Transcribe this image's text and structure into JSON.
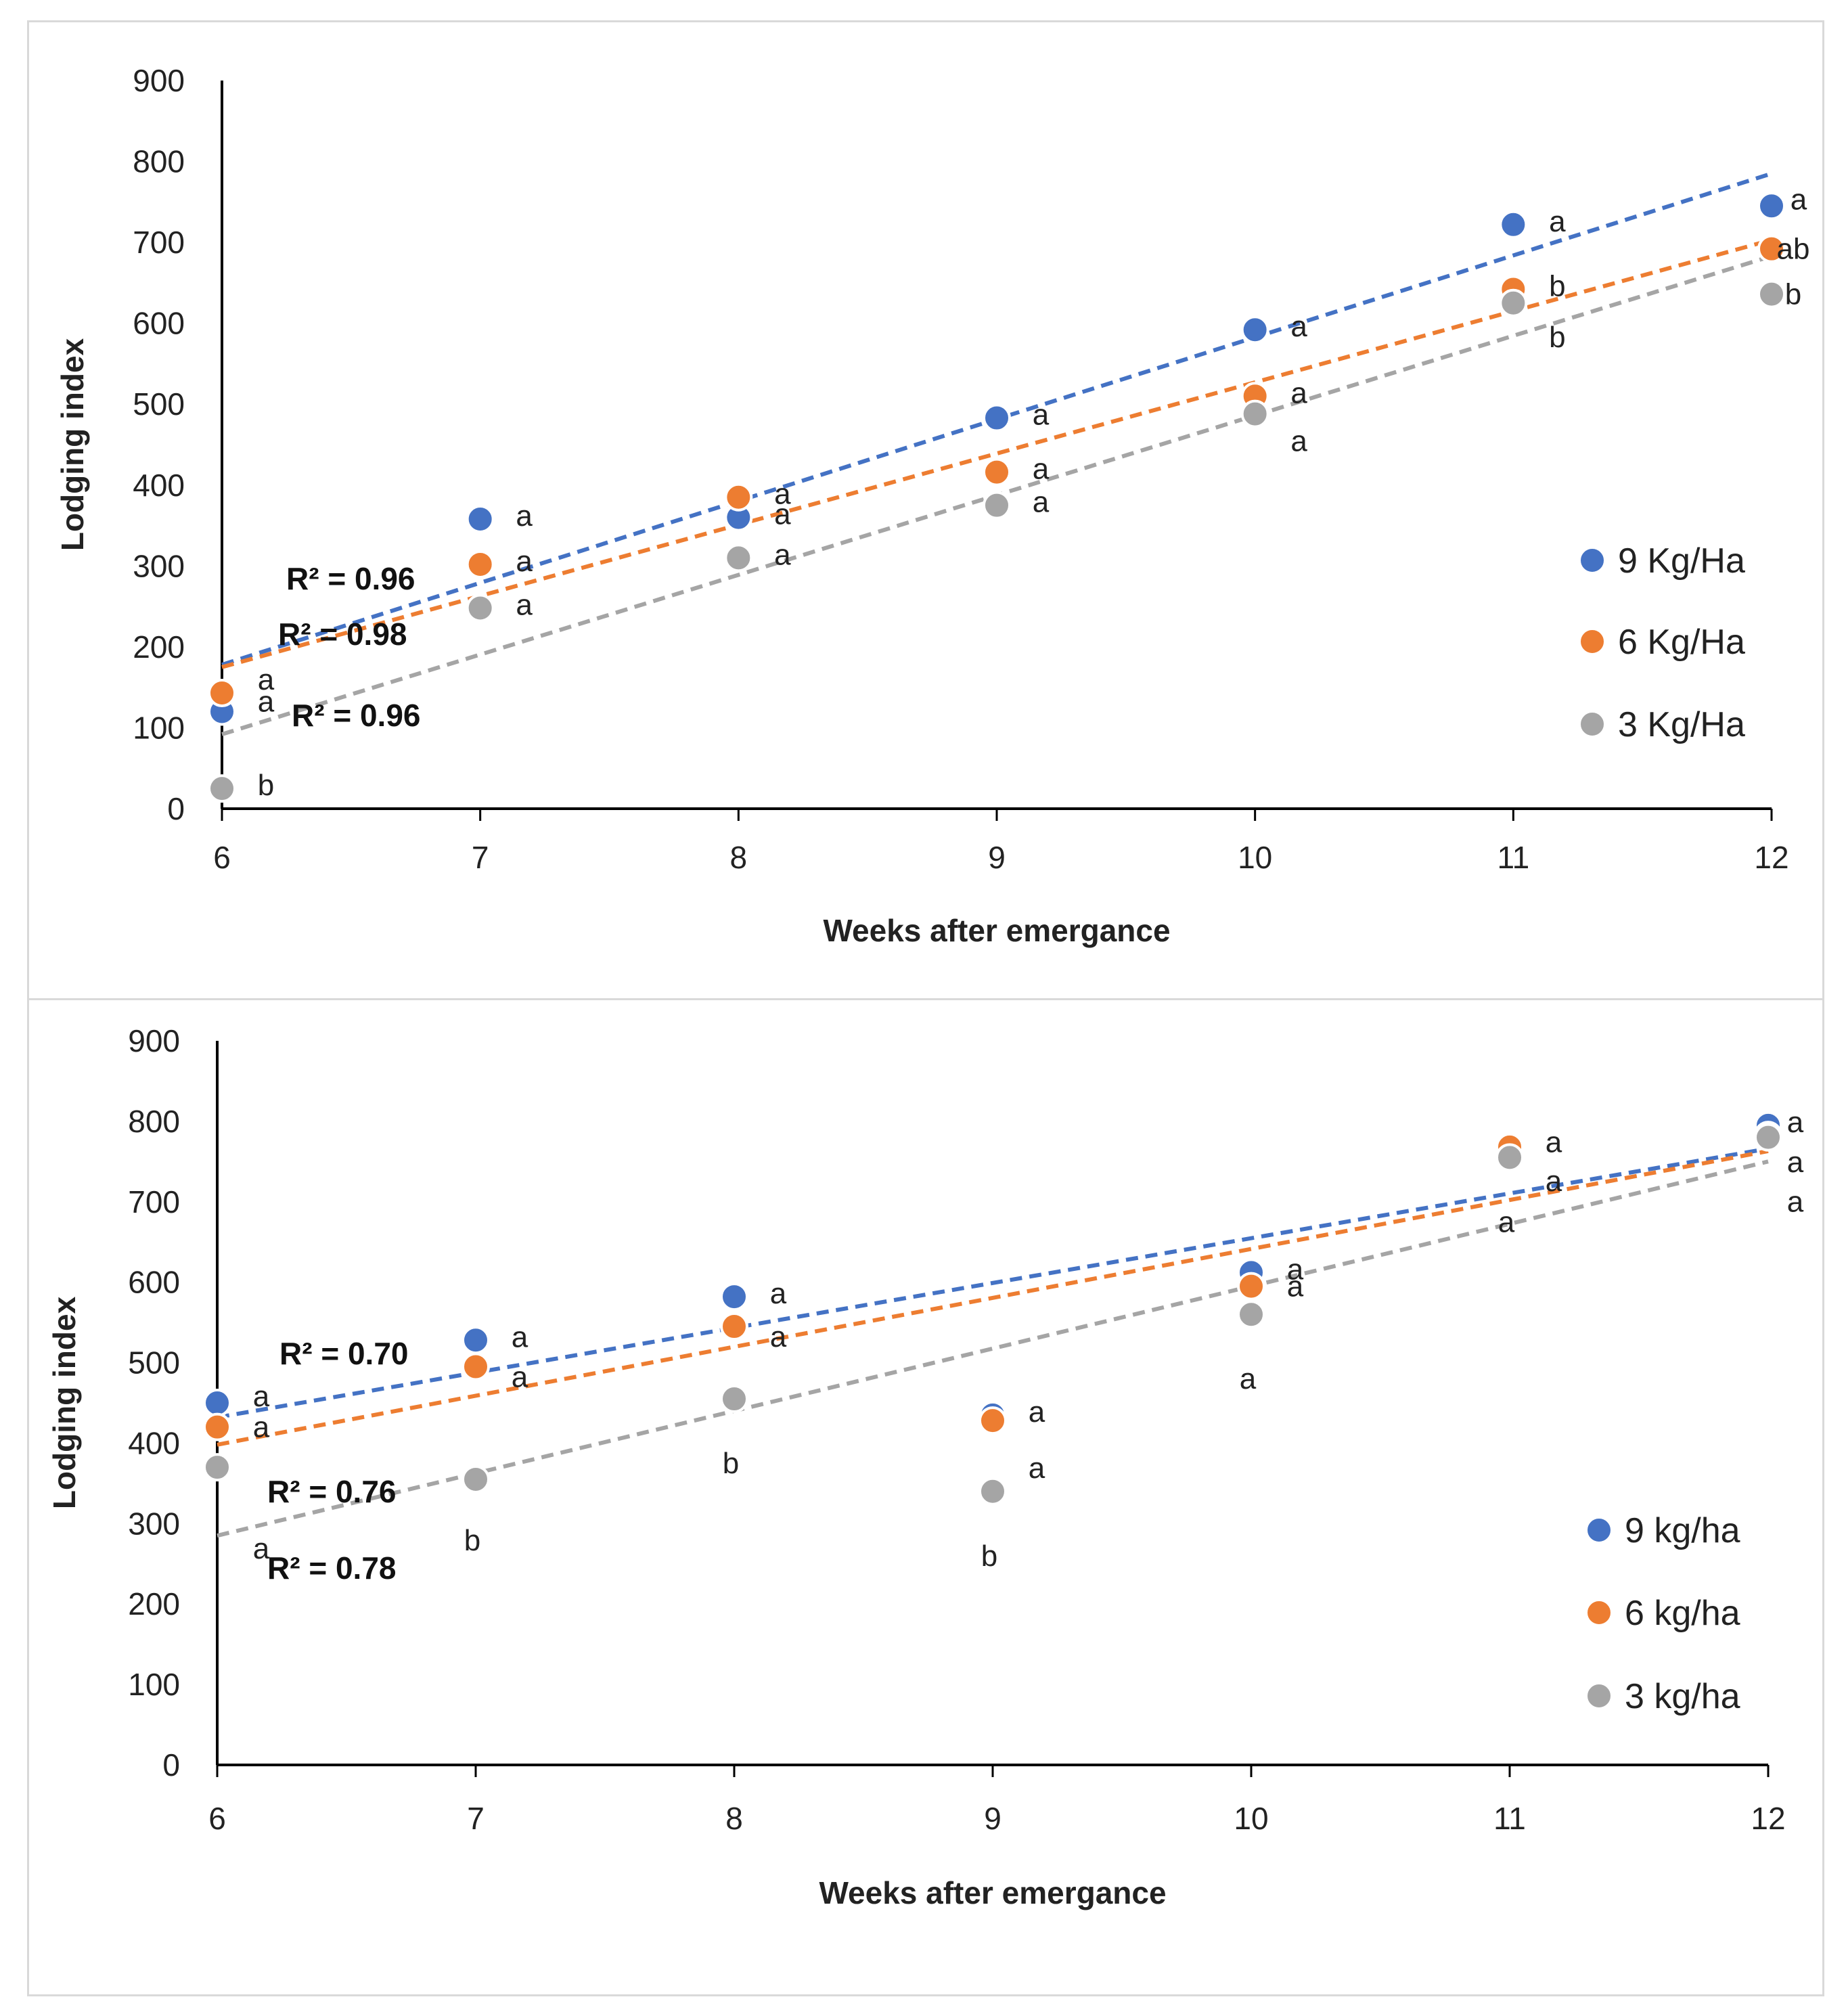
{
  "colors": {
    "9": "#4472C4",
    "6": "#ED7D31",
    "3": "#A5A5A5"
  },
  "chart_data": [
    {
      "type": "scatter",
      "title": "",
      "xlabel": "Weeks after emergance",
      "ylabel": "Lodging index",
      "xlim": [
        6,
        12
      ],
      "ylim": [
        0,
        900
      ],
      "x_ticks": [
        "6",
        "7",
        "8",
        "9",
        "10",
        "11",
        "12"
      ],
      "y_ticks": [
        "0",
        "100",
        "200",
        "300",
        "400",
        "500",
        "600",
        "700",
        "800",
        "900"
      ],
      "x": [
        6,
        7,
        8,
        9,
        10,
        11,
        12
      ],
      "legend_position": "right",
      "series": [
        {
          "name": "9 Kg/Ha",
          "color_key": "9",
          "values": [
            120,
            358,
            360,
            483,
            592,
            722,
            745
          ],
          "letters": [
            "a",
            "a",
            "a",
            "a",
            "a",
            "a",
            "a"
          ],
          "trend": {
            "start": 178,
            "end": 785
          },
          "r2": "R² = 0.96"
        },
        {
          "name": "6 Kg/Ha",
          "color_key": "6",
          "values": [
            143,
            302,
            385,
            416,
            510,
            642,
            692
          ],
          "letters": [
            "a",
            "a",
            "a",
            "a",
            "a",
            "b",
            "ab"
          ],
          "trend": {
            "start": 175,
            "end": 703
          },
          "r2": "R² = 0.98"
        },
        {
          "name": "3 Kg/Ha",
          "color_key": "3",
          "values": [
            25,
            248,
            310,
            375,
            488,
            625,
            636
          ],
          "letters": [
            "b",
            "a",
            "a",
            "a",
            "a",
            "b",
            "b"
          ],
          "trend": {
            "start": 92,
            "end": 683
          },
          "r2": "R² = 0.96"
        }
      ]
    },
    {
      "type": "scatter",
      "title": "",
      "xlabel": "Weeks after emergance",
      "ylabel": "Lodging index",
      "xlim": [
        6,
        12
      ],
      "ylim": [
        0,
        900
      ],
      "x_ticks": [
        "6",
        "7",
        "8",
        "9",
        "10",
        "11",
        "12"
      ],
      "y_ticks": [
        "0",
        "100",
        "200",
        "300",
        "400",
        "500",
        "600",
        "700",
        "800",
        "900"
      ],
      "x": [
        6,
        7,
        8,
        9,
        10,
        11,
        12
      ],
      "legend_position": "right",
      "series": [
        {
          "name": "9 kg/ha",
          "color_key": "9",
          "values": [
            450,
            528,
            582,
            435,
            612,
            770,
            795
          ],
          "letters": [
            "a",
            "a",
            "a",
            "a",
            "a",
            "a",
            "a"
          ],
          "trend": {
            "start": 432,
            "end": 766
          },
          "r2": "R² = 0.70"
        },
        {
          "name": "6 kg/ha",
          "color_key": "6",
          "values": [
            420,
            495,
            545,
            428,
            595,
            768,
            783
          ],
          "letters": [
            "a",
            "a",
            "a",
            "a",
            "a",
            "a",
            "a"
          ],
          "trend": {
            "start": 398,
            "end": 763
          },
          "r2": "R² = 0.76"
        },
        {
          "name": "3 kg/ha",
          "color_key": "3",
          "values": [
            370,
            355,
            455,
            340,
            560,
            755,
            780
          ],
          "letters": [
            "a",
            "b",
            "b",
            "b",
            "a",
            "a",
            "a"
          ],
          "trend": {
            "start": 285,
            "end": 750
          },
          "r2": "R² = 0.78"
        }
      ]
    }
  ]
}
